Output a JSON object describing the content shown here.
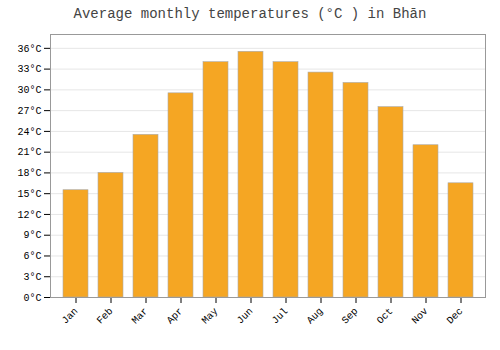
{
  "chart_data": {
    "type": "bar",
    "title": "Average monthly temperatures (°C ) in Bhān",
    "categories": [
      "Jan",
      "Feb",
      "Mar",
      "Apr",
      "May",
      "Jun",
      "Jul",
      "Aug",
      "Sep",
      "Oct",
      "Nov",
      "Dec"
    ],
    "values": [
      15.5,
      18.0,
      23.5,
      29.5,
      34.0,
      35.5,
      34.0,
      32.5,
      31.0,
      27.5,
      22.0,
      16.5
    ],
    "color": "#F5A623",
    "ylim": [
      0,
      38
    ],
    "yticks": [
      {
        "value": 0,
        "label": "0°C"
      },
      {
        "value": 3,
        "label": "3°C"
      },
      {
        "value": 6,
        "label": "6°C"
      },
      {
        "value": 9,
        "label": "9°C"
      },
      {
        "value": 12,
        "label": "12°C"
      },
      {
        "value": 15,
        "label": "15°C"
      },
      {
        "value": 18,
        "label": "18°C"
      },
      {
        "value": 21,
        "label": "21°C"
      },
      {
        "value": 24,
        "label": "24°C"
      },
      {
        "value": 27,
        "label": "27°C"
      },
      {
        "value": 30,
        "label": "30°C"
      },
      {
        "value": 33,
        "label": "33°C"
      },
      {
        "value": 36,
        "label": "36°C"
      }
    ],
    "grid": true
  }
}
